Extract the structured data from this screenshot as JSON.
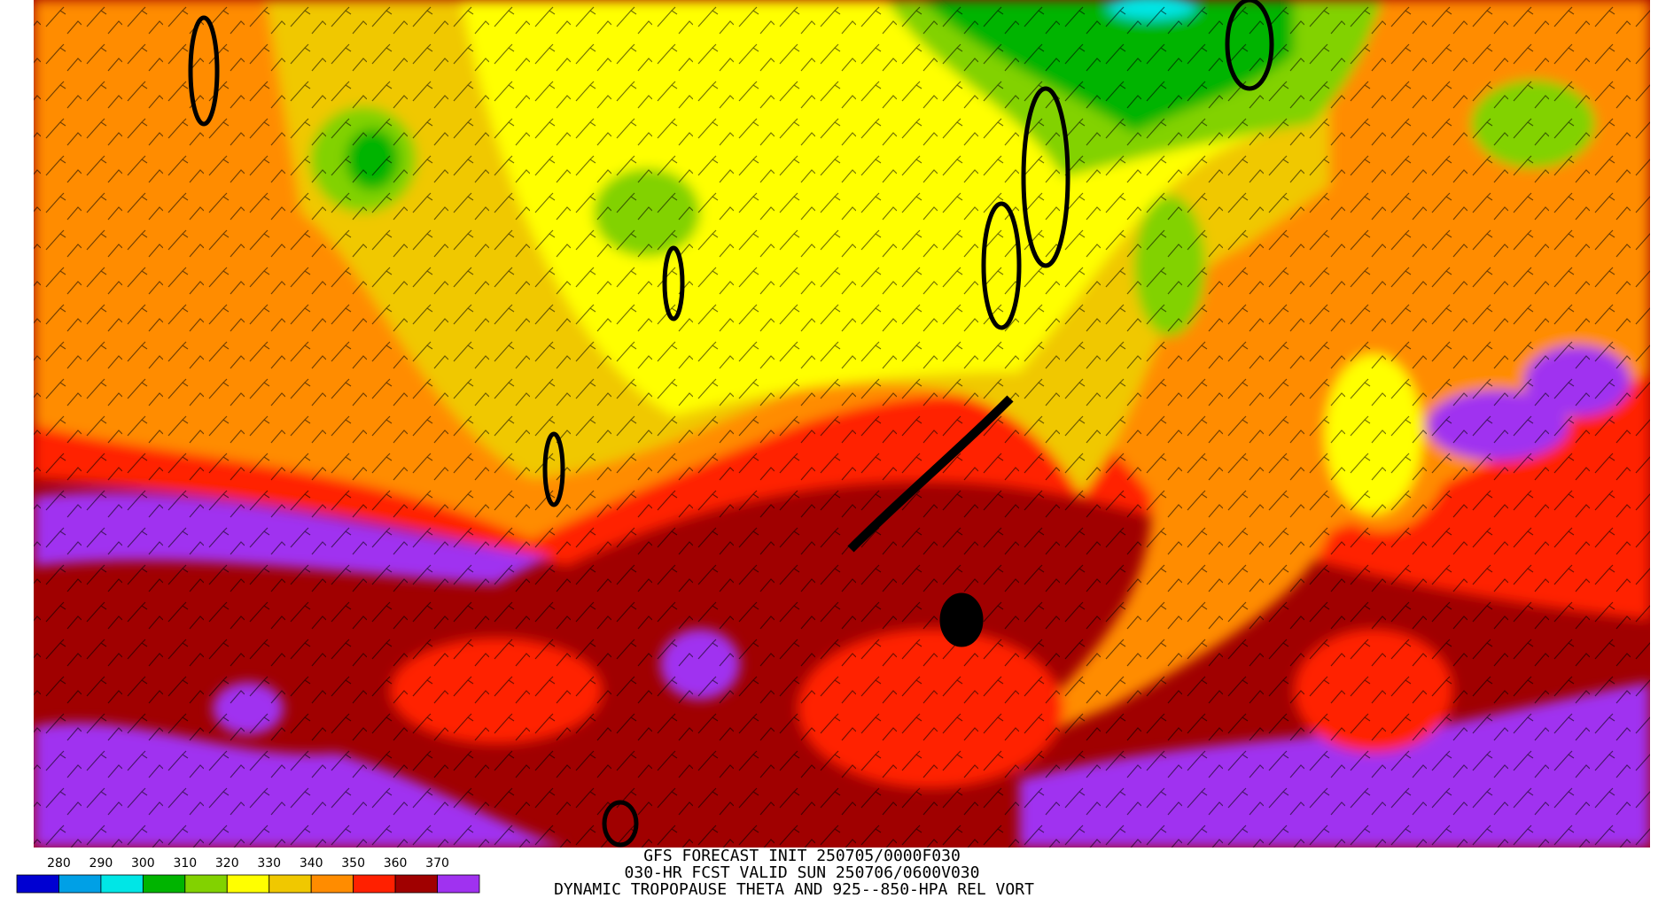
{
  "colorbar": {
    "labels": [
      280,
      290,
      300,
      310,
      320,
      330,
      340,
      350,
      360,
      370
    ],
    "colors": [
      "#0000d2",
      "#00a0e6",
      "#00e6e6",
      "#00b400",
      "#82d200",
      "#ffff00",
      "#f0c800",
      "#ff8c00",
      "#ff2000",
      "#a00000",
      "#a032f0"
    ]
  },
  "title_lines": [
    "GFS FORECAST INIT 250705/0000F030",
    "030-HR FCST VALID SUN 250706/0600V030",
    "DYNAMIC TROPOPAUSE THETA AND 925--850-HPA REL VORT"
  ]
}
